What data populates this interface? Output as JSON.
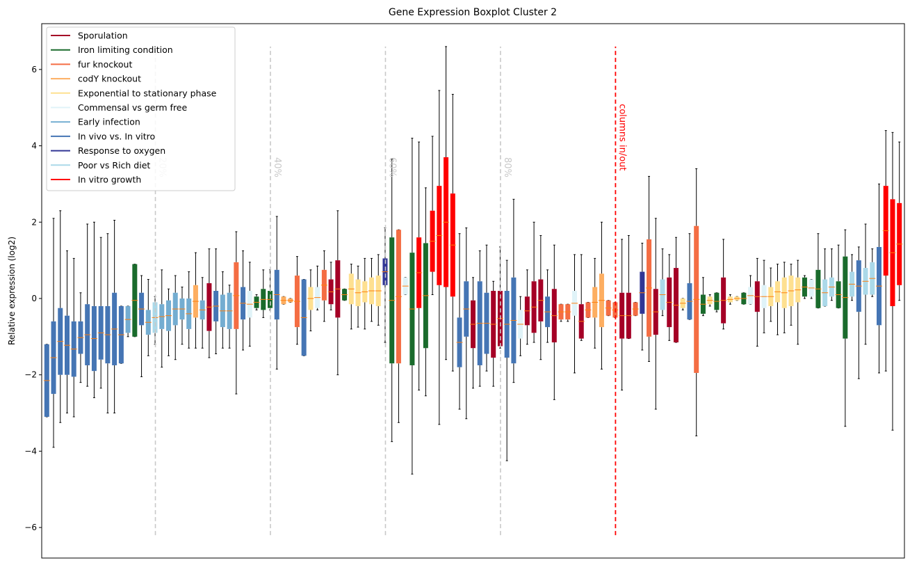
{
  "chart_data": {
    "type": "boxplot",
    "title": "Gene Expression Boxplot Cluster 2",
    "ylabel": "Relative expression (log2)",
    "xlabel": "",
    "ylim": [
      -6.8,
      7.2
    ],
    "yticks": [
      -6,
      -4,
      -2,
      0,
      2,
      4,
      6
    ],
    "ytick_labels": [
      "−6",
      "−4",
      "−2",
      "0",
      "2",
      "4",
      "6"
    ],
    "legend_position": "top-left",
    "legend": [
      {
        "label": "Sporulation",
        "color": "#a50026"
      },
      {
        "label": "Iron limiting condition",
        "color": "#1a6b2c"
      },
      {
        "label": "fur knockout",
        "color": "#f46d43"
      },
      {
        "label": "codY knockout",
        "color": "#fdae61"
      },
      {
        "label": "Exponential to stationary phase",
        "color": "#fee090"
      },
      {
        "label": "Commensal vs germ free",
        "color": "#e0f3f8"
      },
      {
        "label": "Early infection",
        "color": "#74add1"
      },
      {
        "label": "In vivo vs. In vitro",
        "color": "#4575b4"
      },
      {
        "label": "Response to oxygen",
        "color": "#313695"
      },
      {
        "label": "Poor vs Rich diet",
        "color": "#abd9e9"
      },
      {
        "label": "In vitro growth",
        "color": "#ff0000"
      }
    ],
    "percent_markers": [
      {
        "position": 0.2,
        "label": "20%"
      },
      {
        "position": 0.4,
        "label": "40%"
      },
      {
        "position": 0.6,
        "label": "60%"
      },
      {
        "position": 0.8,
        "label": "80%"
      }
    ],
    "split_marker": {
      "position": 1.0,
      "label": "columns in/out",
      "color": "#ff0000"
    },
    "marker_line_range": [
      -6.2,
      6.6
    ],
    "median_color": "#ff7f0e",
    "boxes": [
      {
        "c": 7,
        "q1": -3.1,
        "q3": -1.2,
        "wl": -3.1,
        "wh": -1.2
      },
      {
        "c": 7,
        "q1": -2.5,
        "q3": -0.6,
        "wl": -3.9,
        "wh": 2.1
      },
      {
        "c": 7,
        "q1": -2.0,
        "q3": -0.25,
        "wl": -3.25,
        "wh": 2.3
      },
      {
        "c": 7,
        "q1": -2.0,
        "q3": -0.45,
        "wl": -3.0,
        "wh": 1.25
      },
      {
        "c": 7,
        "q1": -2.05,
        "q3": -0.6,
        "wl": -3.1,
        "wh": 1.05
      },
      {
        "c": 7,
        "q1": -1.45,
        "q3": -0.6,
        "wl": -2.2,
        "wh": 0.15
      },
      {
        "c": 7,
        "q1": -1.75,
        "q3": -0.15,
        "wl": -2.3,
        "wh": 1.95
      },
      {
        "c": 7,
        "q1": -1.9,
        "q3": -0.2,
        "wl": -2.6,
        "wh": 2.0
      },
      {
        "c": 7,
        "q1": -1.6,
        "q3": -0.2,
        "wl": -2.35,
        "wh": 1.6
      },
      {
        "c": 7,
        "q1": -1.7,
        "q3": -0.2,
        "wl": -3.0,
        "wh": 1.7
      },
      {
        "c": 7,
        "q1": -1.75,
        "q3": 0.15,
        "wl": -3.0,
        "wh": 2.05
      },
      {
        "c": 7,
        "q1": -1.7,
        "q3": -0.2,
        "wl": -1.7,
        "wh": -0.2
      },
      {
        "c": 6,
        "q1": -0.9,
        "q3": -0.2,
        "wl": -1.0,
        "wh": -0.2
      },
      {
        "c": 1,
        "q1": -1.0,
        "q3": 0.9,
        "wl": -1.0,
        "wh": 0.9
      },
      {
        "c": 7,
        "q1": -0.7,
        "q3": 0.15,
        "wl": -2.05,
        "wh": 0.6
      },
      {
        "c": 6,
        "q1": -0.95,
        "q3": -0.3,
        "wl": -1.5,
        "wh": 0.5
      },
      {
        "c": 9,
        "q1": -0.9,
        "q3": -0.1,
        "wl": -1.2,
        "wh": 0.05
      },
      {
        "c": 6,
        "q1": -0.8,
        "q3": -0.15,
        "wl": -1.8,
        "wh": 0.75
      },
      {
        "c": 6,
        "q1": -0.85,
        "q3": -0.05,
        "wl": -1.5,
        "wh": 0.25
      },
      {
        "c": 6,
        "q1": -0.7,
        "q3": 0.15,
        "wl": -1.6,
        "wh": 0.6
      },
      {
        "c": 6,
        "q1": -0.55,
        "q3": 0.0,
        "wl": -1.2,
        "wh": 0.3
      },
      {
        "c": 6,
        "q1": -0.8,
        "q3": 0.0,
        "wl": -1.3,
        "wh": 0.7
      },
      {
        "c": 3,
        "q1": -0.5,
        "q3": 0.35,
        "wl": -1.3,
        "wh": 1.2
      },
      {
        "c": 6,
        "q1": -0.55,
        "q3": -0.05,
        "wl": -1.3,
        "wh": 0.55
      },
      {
        "c": 0,
        "q1": -0.85,
        "q3": 0.4,
        "wl": -1.55,
        "wh": 1.3
      },
      {
        "c": 7,
        "q1": -0.6,
        "q3": 0.2,
        "wl": -1.45,
        "wh": 1.3
      },
      {
        "c": 6,
        "q1": -0.75,
        "q3": 0.1,
        "wl": -1.3,
        "wh": 0.7
      },
      {
        "c": 6,
        "q1": -0.8,
        "q3": 0.15,
        "wl": -1.3,
        "wh": 0.35
      },
      {
        "c": 2,
        "q1": -0.8,
        "q3": 0.95,
        "wl": -2.5,
        "wh": 1.75
      },
      {
        "c": 7,
        "q1": -0.55,
        "q3": 0.3,
        "wl": -1.35,
        "wh": 1.25
      },
      {
        "c": 5,
        "q1": -0.5,
        "q3": 0.2,
        "wl": -1.25,
        "wh": 0.95
      },
      {
        "c": 1,
        "q1": -0.25,
        "q3": 0.05,
        "wl": -0.3,
        "wh": 0.1
      },
      {
        "c": 1,
        "q1": -0.3,
        "q3": 0.25,
        "wl": -0.5,
        "wh": 0.75
      },
      {
        "c": 1,
        "q1": -0.25,
        "q3": 0.2,
        "wl": -0.3,
        "wh": 0.75
      },
      {
        "c": 7,
        "q1": -0.55,
        "q3": 0.75,
        "wl": -1.85,
        "wh": 2.15
      },
      {
        "c": 3,
        "q1": -0.15,
        "q3": 0.05,
        "wl": -0.15,
        "wh": 0.05
      },
      {
        "c": 3,
        "q1": -0.1,
        "q3": 0.0,
        "wl": -0.1,
        "wh": 0.0
      },
      {
        "c": 2,
        "q1": -0.75,
        "q3": 0.6,
        "wl": -1.2,
        "wh": 1.1
      },
      {
        "c": 7,
        "q1": -1.5,
        "q3": 0.5,
        "wl": -1.5,
        "wh": 0.5
      },
      {
        "c": 4,
        "q1": -0.3,
        "q3": 0.3,
        "wl": -0.85,
        "wh": 0.75
      },
      {
        "c": 5,
        "q1": -0.25,
        "q3": 0.3,
        "wl": -0.3,
        "wh": 0.85
      },
      {
        "c": 2,
        "q1": -0.05,
        "q3": 0.75,
        "wl": -0.6,
        "wh": 1.25
      },
      {
        "c": 0,
        "q1": -0.15,
        "q3": 0.5,
        "wl": -0.3,
        "wh": 0.95
      },
      {
        "c": 0,
        "q1": -0.5,
        "q3": 1.0,
        "wl": -2.0,
        "wh": 2.3
      },
      {
        "c": 1,
        "q1": -0.05,
        "q3": 0.25,
        "wl": -0.05,
        "wh": 0.25
      },
      {
        "c": 4,
        "q1": -0.15,
        "q3": 0.65,
        "wl": -0.8,
        "wh": 0.9
      },
      {
        "c": 4,
        "q1": -0.2,
        "q3": 0.5,
        "wl": -0.75,
        "wh": 0.85
      },
      {
        "c": 4,
        "q1": -0.1,
        "q3": 0.45,
        "wl": -0.8,
        "wh": 1.05
      },
      {
        "c": 4,
        "q1": -0.15,
        "q3": 0.55,
        "wl": -0.6,
        "wh": 1.05
      },
      {
        "c": 4,
        "q1": -0.2,
        "q3": 0.6,
        "wl": -0.7,
        "wh": 1.15
      },
      {
        "c": 8,
        "q1": 0.35,
        "q3": 1.05,
        "wl": -1.15,
        "wh": 1.85
      },
      {
        "c": 1,
        "q1": -1.7,
        "q3": 1.6,
        "wl": -3.75,
        "wh": 3.65
      },
      {
        "c": 2,
        "q1": -1.7,
        "q3": 1.8,
        "wl": -3.25,
        "wh": 1.8
      },
      {
        "c": 5,
        "q1": 0.1,
        "q3": 0.55,
        "wl": 0.1,
        "wh": 0.55
      },
      {
        "c": 1,
        "q1": -1.75,
        "q3": 1.2,
        "wl": -4.6,
        "wh": 4.2
      },
      {
        "c": 10,
        "q1": -0.25,
        "q3": 1.6,
        "wl": -2.4,
        "wh": 4.1
      },
      {
        "c": 1,
        "q1": -1.3,
        "q3": 1.45,
        "wl": -2.55,
        "wh": 2.9
      },
      {
        "c": 10,
        "q1": 0.7,
        "q3": 2.3,
        "wl": 0.1,
        "wh": 4.25
      },
      {
        "c": 10,
        "q1": 0.35,
        "q3": 2.95,
        "wl": -3.3,
        "wh": 5.45
      },
      {
        "c": 10,
        "q1": 0.3,
        "q3": 3.7,
        "wl": -1.6,
        "wh": 6.6
      },
      {
        "c": 10,
        "q1": 0.05,
        "q3": 2.75,
        "wl": -1.9,
        "wh": 5.35
      },
      {
        "c": 7,
        "q1": -1.8,
        "q3": -0.5,
        "wl": -2.9,
        "wh": 1.7
      },
      {
        "c": 7,
        "q1": -1.0,
        "q3": 0.45,
        "wl": -3.15,
        "wh": 1.85
      },
      {
        "c": 0,
        "q1": -1.3,
        "q3": -0.05,
        "wl": -2.35,
        "wh": 0.55
      },
      {
        "c": 7,
        "q1": -1.75,
        "q3": 0.45,
        "wl": -2.3,
        "wh": 1.25
      },
      {
        "c": 7,
        "q1": -1.45,
        "q3": 0.15,
        "wl": -1.9,
        "wh": 1.4
      },
      {
        "c": 0,
        "q1": -1.55,
        "q3": 0.2,
        "wl": -2.3,
        "wh": 0.45
      },
      {
        "c": 0,
        "q1": -1.25,
        "q3": 0.2,
        "wl": -1.3,
        "wh": 1.35
      },
      {
        "c": 7,
        "q1": -1.55,
        "q3": 0.2,
        "wl": -4.25,
        "wh": 1.0
      },
      {
        "c": 7,
        "q1": -1.7,
        "q3": 0.55,
        "wl": -2.2,
        "wh": 2.6
      },
      {
        "c": 5,
        "q1": -1.05,
        "q3": -0.3,
        "wl": -1.5,
        "wh": 0.05
      },
      {
        "c": 0,
        "q1": -0.7,
        "q3": 0.05,
        "wl": -1.2,
        "wh": 0.75
      },
      {
        "c": 0,
        "q1": -0.9,
        "q3": 0.45,
        "wl": -1.15,
        "wh": 2.0
      },
      {
        "c": 0,
        "q1": -0.6,
        "q3": 0.5,
        "wl": -1.6,
        "wh": 1.65
      },
      {
        "c": 7,
        "q1": -0.75,
        "q3": 0.05,
        "wl": -1.15,
        "wh": 0.75
      },
      {
        "c": 0,
        "q1": -1.15,
        "q3": 0.25,
        "wl": -2.65,
        "wh": 1.4
      },
      {
        "c": 2,
        "q1": -0.55,
        "q3": -0.15,
        "wl": -0.6,
        "wh": -0.15
      },
      {
        "c": 2,
        "q1": -0.55,
        "q3": -0.15,
        "wl": -0.6,
        "wh": -0.15
      },
      {
        "c": 5,
        "q1": -0.45,
        "q3": 0.2,
        "wl": -1.95,
        "wh": 1.15
      },
      {
        "c": 0,
        "q1": -1.05,
        "q3": -0.15,
        "wl": -1.1,
        "wh": 1.15
      },
      {
        "c": 2,
        "q1": -0.5,
        "q3": -0.1,
        "wl": -0.5,
        "wh": -0.1
      },
      {
        "c": 3,
        "q1": -0.5,
        "q3": 0.3,
        "wl": -1.3,
        "wh": 1.05
      },
      {
        "c": 3,
        "q1": -0.75,
        "q3": 0.65,
        "wl": -1.85,
        "wh": 2.0
      },
      {
        "c": 2,
        "q1": -0.45,
        "q3": -0.05,
        "wl": -0.45,
        "wh": -0.05
      },
      {
        "c": 2,
        "q1": -0.5,
        "q3": -0.1,
        "wl": -0.5,
        "wh": -0.1
      },
      {
        "c": 0,
        "q1": -1.05,
        "q3": 0.15,
        "wl": -2.4,
        "wh": 1.55
      },
      {
        "c": 0,
        "q1": -1.05,
        "q3": 0.15,
        "wl": -1.05,
        "wh": 1.65
      },
      {
        "c": 2,
        "q1": -0.45,
        "q3": -0.1,
        "wl": -0.45,
        "wh": -0.1
      },
      {
        "c": 8,
        "q1": -0.4,
        "q3": 0.7,
        "wl": -1.35,
        "wh": 1.45
      },
      {
        "c": 2,
        "q1": -1.0,
        "q3": 1.55,
        "wl": -1.65,
        "wh": 3.2
      },
      {
        "c": 0,
        "q1": -0.95,
        "q3": 0.25,
        "wl": -2.9,
        "wh": 2.1
      },
      {
        "c": 9,
        "q1": -0.3,
        "q3": 0.5,
        "wl": -0.45,
        "wh": 1.3
      },
      {
        "c": 0,
        "q1": -0.75,
        "q3": 0.55,
        "wl": -1.1,
        "wh": 1.15
      },
      {
        "c": 0,
        "q1": -1.15,
        "q3": 0.8,
        "wl": -1.15,
        "wh": 1.6
      },
      {
        "c": 4,
        "q1": -0.25,
        "q3": 0.0,
        "wl": -0.3,
        "wh": 0.0
      },
      {
        "c": 7,
        "q1": -0.55,
        "q3": 0.4,
        "wl": -0.55,
        "wh": 1.7
      },
      {
        "c": 2,
        "q1": -1.95,
        "q3": 1.9,
        "wl": -3.6,
        "wh": 3.4
      },
      {
        "c": 1,
        "q1": -0.4,
        "q3": 0.1,
        "wl": -0.45,
        "wh": 0.55
      },
      {
        "c": 4,
        "q1": -0.15,
        "q3": 0.05,
        "wl": -0.2,
        "wh": 0.1
      },
      {
        "c": 1,
        "q1": -0.3,
        "q3": 0.15,
        "wl": -0.35,
        "wh": 0.15
      },
      {
        "c": 0,
        "q1": -0.65,
        "q3": 0.55,
        "wl": -0.8,
        "wh": 1.55
      },
      {
        "c": 4,
        "q1": -0.1,
        "q3": 0.05,
        "wl": -0.15,
        "wh": 0.1
      },
      {
        "c": 4,
        "q1": -0.05,
        "q3": 0.05,
        "wl": -0.05,
        "wh": 0.05
      },
      {
        "c": 1,
        "q1": -0.15,
        "q3": 0.15,
        "wl": -0.15,
        "wh": 0.15
      },
      {
        "c": 5,
        "q1": -0.15,
        "q3": 0.3,
        "wl": -0.15,
        "wh": 0.6
      },
      {
        "c": 0,
        "q1": -0.35,
        "q3": 0.45,
        "wl": -1.25,
        "wh": 1.05
      },
      {
        "c": 5,
        "q1": -0.25,
        "q3": 0.35,
        "wl": -0.9,
        "wh": 1.0
      },
      {
        "c": 4,
        "q1": -0.2,
        "q3": 0.3,
        "wl": -0.6,
        "wh": 0.8
      },
      {
        "c": 4,
        "q1": -0.1,
        "q3": 0.45,
        "wl": -0.95,
        "wh": 0.9
      },
      {
        "c": 4,
        "q1": -0.25,
        "q3": 0.55,
        "wl": -0.9,
        "wh": 0.95
      },
      {
        "c": 4,
        "q1": -0.2,
        "q3": 0.6,
        "wl": -0.7,
        "wh": 0.9
      },
      {
        "c": 4,
        "q1": -0.1,
        "q3": 0.55,
        "wl": -1.2,
        "wh": 1.0
      },
      {
        "c": 1,
        "q1": 0.05,
        "q3": 0.55,
        "wl": 0.0,
        "wh": 0.6
      },
      {
        "c": 5,
        "q1": 0.05,
        "q3": 0.5,
        "wl": 0.0,
        "wh": 0.5
      },
      {
        "c": 1,
        "q1": -0.25,
        "q3": 0.75,
        "wl": -0.25,
        "wh": 1.7
      },
      {
        "c": 9,
        "q1": -0.2,
        "q3": 0.5,
        "wl": -0.2,
        "wh": 1.3
      },
      {
        "c": 9,
        "q1": 0.05,
        "q3": 0.55,
        "wl": -0.05,
        "wh": 1.3
      },
      {
        "c": 1,
        "q1": -0.25,
        "q3": 0.45,
        "wl": -0.25,
        "wh": 1.4
      },
      {
        "c": 1,
        "q1": -1.05,
        "q3": 1.1,
        "wl": -3.35,
        "wh": 1.8
      },
      {
        "c": 9,
        "q1": 0.05,
        "q3": 0.7,
        "wl": -0.05,
        "wh": 1.15
      },
      {
        "c": 7,
        "q1": -0.35,
        "q3": 1.0,
        "wl": -2.1,
        "wh": 1.35
      },
      {
        "c": 9,
        "q1": 0.1,
        "q3": 0.8,
        "wl": -1.2,
        "wh": 1.95
      },
      {
        "c": 9,
        "q1": 0.1,
        "q3": 0.95,
        "wl": 0.05,
        "wh": 1.3
      },
      {
        "c": 7,
        "q1": -0.7,
        "q3": 1.35,
        "wl": -1.95,
        "wh": 3.0
      },
      {
        "c": 10,
        "q1": 0.6,
        "q3": 2.95,
        "wl": -1.9,
        "wh": 4.4
      },
      {
        "c": 10,
        "q1": -0.2,
        "q3": 2.6,
        "wl": -3.45,
        "wh": 4.35
      },
      {
        "c": 10,
        "q1": 0.35,
        "q3": 2.5,
        "wl": -0.05,
        "wh": 4.1
      }
    ]
  }
}
